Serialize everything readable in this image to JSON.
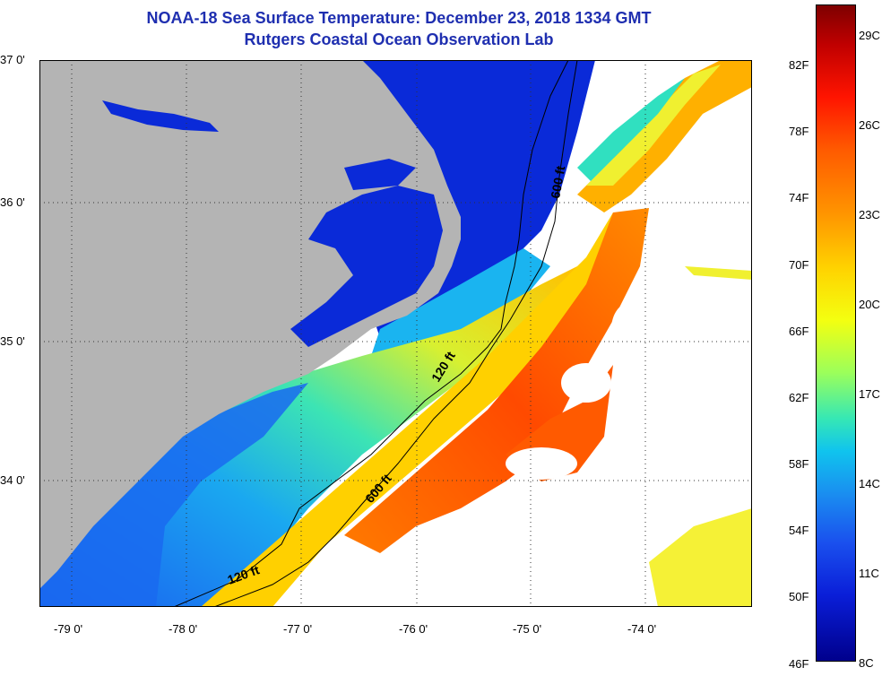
{
  "title": {
    "line1": "NOAA-18 Sea Surface Temperature:  December 23, 2018 1334 GMT",
    "line2": "Rutgers Coastal Ocean Observation Lab"
  },
  "map": {
    "lat_labels": [
      "37 0'",
      "36 0'",
      "35 0'",
      "34 0'"
    ],
    "lon_labels": [
      "-79 0'",
      "-78 0'",
      "-77 0'",
      "-76 0'",
      "-75 0'",
      "-74 0'"
    ],
    "contour_labels": [
      "600 ft",
      "120 ft",
      "600 ft",
      "120 ft"
    ],
    "colors": {
      "land": "#b4b4b4",
      "cloud": "#ffffff",
      "contour": "#000000",
      "grid": "#333333"
    }
  },
  "colorbar": {
    "fahrenheit_labels": [
      "82F",
      "78F",
      "74F",
      "70F",
      "66F",
      "62F",
      "58F",
      "54F",
      "50F",
      "46F"
    ],
    "celsius_labels": [
      "29C",
      "26C",
      "23C",
      "20C",
      "17C",
      "14C",
      "11C",
      "8C"
    ]
  }
}
